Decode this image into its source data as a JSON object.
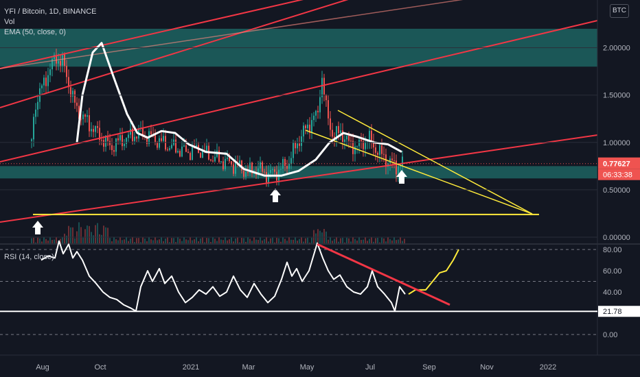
{
  "header": {
    "symbol": "YFI / Bitcoin, 1D, BINANCE",
    "vol_label": "Vol",
    "ema_label": "EMA (50, close, 0)",
    "currency": "BTC"
  },
  "rsi_panel": {
    "label": "RSI (14, close)"
  },
  "price_badge": {
    "price": "0.77627",
    "countdown": "06:33:38"
  },
  "rsi_badge": {
    "value": "21.78"
  },
  "colors": {
    "background": "#131722",
    "up": "#26a69a",
    "down": "#ef5350",
    "zone": "#26a69a",
    "trendline_red": "#f23645",
    "trendline_yellow": "#ffeb3b",
    "ema": "#ffffff"
  },
  "chart_data": [
    {
      "type": "candlestick",
      "title": "YFI / Bitcoin, 1D, BINANCE",
      "y_axis": {
        "ticks": [
          "2.00000",
          "1.50000",
          "1.00000",
          "0.50000",
          "0.00000"
        ],
        "ylim": [
          0,
          2.4
        ]
      },
      "x_axis": {
        "ticks": [
          "Aug",
          "Oct",
          "2021",
          "Mar",
          "May",
          "Jul",
          "Sep",
          "Nov",
          "2022"
        ]
      },
      "series_anchors": {
        "name": "EMA (50, close, 0)",
        "points": [
          [
            0,
            0.36
          ],
          [
            12,
            0.45
          ],
          [
            22,
            0.5
          ],
          [
            35,
            0.25
          ],
          [
            50,
            1.4
          ],
          [
            70,
            1.75
          ],
          [
            80,
            1.9
          ],
          [
            90,
            1.85
          ],
          [
            110,
            1.35
          ],
          [
            140,
            1.1
          ],
          [
            160,
            0.95
          ],
          [
            170,
            1.0
          ],
          [
            185,
            1.05
          ],
          [
            200,
            1.1
          ],
          [
            220,
            1.05
          ],
          [
            245,
            0.96
          ],
          [
            270,
            0.9
          ],
          [
            290,
            0.92
          ],
          [
            305,
            0.85
          ],
          [
            325,
            0.8
          ],
          [
            345,
            0.75
          ],
          [
            360,
            0.68
          ],
          [
            375,
            0.72
          ],
          [
            390,
            0.66
          ],
          [
            405,
            0.7
          ],
          [
            420,
            0.8
          ],
          [
            432,
            1.0
          ],
          [
            445,
            1.15
          ],
          [
            455,
            1.25
          ],
          [
            462,
            1.3
          ],
          [
            467,
            1.74
          ],
          [
            475,
            1.3
          ],
          [
            485,
            1.05
          ],
          [
            495,
            1.12
          ],
          [
            505,
            1.0
          ],
          [
            520,
            0.95
          ],
          [
            535,
            1.05
          ],
          [
            550,
            0.9
          ],
          [
            565,
            0.8
          ],
          [
            575,
            0.75
          ],
          [
            585,
            0.78
          ]
        ]
      },
      "ema_points": [
        [
          112,
          1.0
        ],
        [
          120,
          1.5
        ],
        [
          135,
          1.95
        ],
        [
          148,
          2.05
        ],
        [
          165,
          1.7
        ],
        [
          185,
          1.3
        ],
        [
          200,
          1.1
        ],
        [
          215,
          1.05
        ],
        [
          235,
          1.12
        ],
        [
          255,
          1.1
        ],
        [
          275,
          0.98
        ],
        [
          300,
          0.9
        ],
        [
          330,
          0.88
        ],
        [
          355,
          0.72
        ],
        [
          385,
          0.65
        ],
        [
          410,
          0.65
        ],
        [
          435,
          0.7
        ],
        [
          460,
          0.82
        ],
        [
          480,
          1.0
        ],
        [
          500,
          1.1
        ],
        [
          520,
          1.06
        ],
        [
          545,
          1.0
        ],
        [
          565,
          0.98
        ],
        [
          585,
          0.9
        ]
      ],
      "price_last": 0.77627,
      "annotations": {
        "support_zones": [
          [
            1.8,
            2.2
          ],
          [
            0.62,
            0.75
          ]
        ],
        "horizontal_line": 0.24,
        "arrows_at_x": [
          "Aug",
          "Mar",
          "Jul"
        ]
      }
    },
    {
      "type": "line",
      "title": "RSI (14, close)",
      "y_axis": {
        "ticks": [
          "80.00",
          "60.00",
          "40.00",
          "0.00"
        ],
        "ylim": [
          -5,
          95
        ]
      },
      "last_value": 21.78,
      "points": [
        [
          60,
          70
        ],
        [
          70,
          74
        ],
        [
          80,
          72
        ],
        [
          86,
          88
        ],
        [
          92,
          76
        ],
        [
          100,
          85
        ],
        [
          106,
          72
        ],
        [
          112,
          78
        ],
        [
          120,
          70
        ],
        [
          130,
          55
        ],
        [
          140,
          48
        ],
        [
          150,
          40
        ],
        [
          160,
          35
        ],
        [
          170,
          33
        ],
        [
          180,
          28
        ],
        [
          190,
          25
        ],
        [
          198,
          22
        ],
        [
          205,
          45
        ],
        [
          215,
          60
        ],
        [
          222,
          50
        ],
        [
          232,
          62
        ],
        [
          240,
          48
        ],
        [
          250,
          55
        ],
        [
          260,
          40
        ],
        [
          270,
          30
        ],
        [
          280,
          35
        ],
        [
          290,
          42
        ],
        [
          300,
          38
        ],
        [
          310,
          45
        ],
        [
          320,
          36
        ],
        [
          330,
          40
        ],
        [
          340,
          55
        ],
        [
          350,
          42
        ],
        [
          360,
          35
        ],
        [
          370,
          48
        ],
        [
          380,
          38
        ],
        [
          390,
          30
        ],
        [
          400,
          36
        ],
        [
          410,
          52
        ],
        [
          418,
          68
        ],
        [
          425,
          55
        ],
        [
          432,
          62
        ],
        [
          440,
          50
        ],
        [
          450,
          60
        ],
        [
          462,
          86
        ],
        [
          470,
          72
        ],
        [
          478,
          60
        ],
        [
          486,
          52
        ],
        [
          495,
          56
        ],
        [
          505,
          45
        ],
        [
          515,
          40
        ],
        [
          525,
          38
        ],
        [
          535,
          45
        ],
        [
          542,
          60
        ],
        [
          550,
          45
        ],
        [
          560,
          38
        ],
        [
          570,
          30
        ],
        [
          575,
          22
        ],
        [
          582,
          45
        ],
        [
          590,
          38
        ]
      ],
      "projection": [
        [
          595,
          38
        ],
        [
          605,
          42
        ],
        [
          620,
          42
        ],
        [
          630,
          50
        ],
        [
          640,
          58
        ],
        [
          650,
          60
        ],
        [
          660,
          70
        ],
        [
          668,
          80
        ]
      ],
      "reference_lines": [
        80,
        50,
        21.78,
        0
      ],
      "trendline": [
        [
          462,
          85
        ],
        [
          655,
          28
        ]
      ]
    }
  ]
}
